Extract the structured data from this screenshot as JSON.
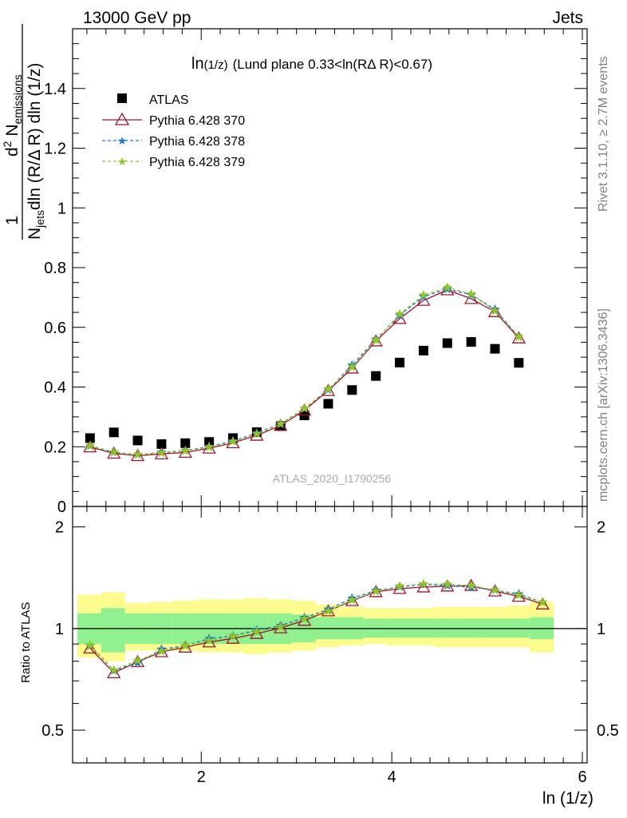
{
  "header": {
    "energy_label": "13000 GeV pp",
    "process_label": "Jets"
  },
  "side_labels": {
    "rivet": "Rivet 3.1.10, ≥ 2.7M events",
    "mcplots": "mcplots.cern.ch [arXiv:1306.3436]"
  },
  "chart_data": [
    {
      "type": "scatter",
      "title_main": "ln",
      "title_sub": "(1/z)",
      "title_rest": "(Lund plane 0.33<ln(RΔ R)<0.67)",
      "ylabel": "1/N_jets dln (R/Δ R) dln (1/z) · d² N_emissions",
      "ylabel_parts": {
        "top": "d",
        "top_sup": "2",
        "top_rest": " N",
        "top_sub": "emissions",
        "one": "1",
        "bottom_n": "N",
        "bottom_sub": "jets",
        "bottom_rest": "dln (R/Δ R) dln (1/z)"
      },
      "watermark": "ATLAS_2020_I1790256",
      "xlim": [
        0.65,
        6.05
      ],
      "ylim": [
        0,
        1.6
      ],
      "yticks": [
        "0",
        "0.2",
        "0.4",
        "0.6",
        "0.8",
        "1",
        "1.2",
        "1.4"
      ],
      "legend_position": "top-left",
      "x": [
        0.833,
        1.083,
        1.333,
        1.583,
        1.833,
        2.083,
        2.333,
        2.583,
        2.833,
        3.083,
        3.333,
        3.583,
        3.833,
        4.083,
        4.333,
        4.583,
        4.833,
        5.083,
        5.333,
        5.583
      ],
      "series": [
        {
          "name": "ATLAS",
          "marker": "square",
          "color": "#000000",
          "values": [
            0.229,
            0.248,
            0.221,
            0.209,
            0.212,
            0.216,
            0.229,
            0.249,
            0.269,
            0.305,
            0.344,
            0.39,
            0.437,
            0.482,
            0.522,
            0.547,
            0.551,
            0.528,
            0.481,
            null
          ]
        },
        {
          "name": "Pythia 6.428 370",
          "marker": "triangle-open",
          "color": "#a0152c",
          "values": [
            0.199,
            0.178,
            0.17,
            0.176,
            0.181,
            0.195,
            0.213,
            0.238,
            0.271,
            0.322,
            0.388,
            0.463,
            0.554,
            0.629,
            0.69,
            0.725,
            0.696,
            0.652,
            0.564,
            null
          ]
        },
        {
          "name": "Pythia 6.428 378",
          "marker": "star",
          "color": "#1a78d4",
          "values": [
            0.203,
            0.181,
            0.174,
            0.181,
            0.187,
            0.201,
            0.219,
            0.246,
            0.277,
            0.328,
            0.391,
            0.473,
            0.56,
            0.64,
            0.703,
            0.728,
            0.709,
            0.66,
            0.568,
            null
          ]
        },
        {
          "name": "Pythia 6.428 379",
          "marker": "star",
          "color": "#8ec624",
          "values": [
            0.204,
            0.182,
            0.174,
            0.179,
            0.186,
            0.199,
            0.217,
            0.243,
            0.276,
            0.328,
            0.393,
            0.467,
            0.557,
            0.645,
            0.708,
            0.733,
            0.712,
            0.655,
            0.568,
            null
          ]
        }
      ]
    },
    {
      "type": "scatter",
      "ylabel": "Ratio to ATLAS",
      "xlabel": "ln (1/z)",
      "scale": "log",
      "ylim": [
        0.4,
        2.3
      ],
      "yticks": [
        "0.5",
        "1",
        "2"
      ],
      "xticks": [
        "2",
        "4",
        "6"
      ],
      "reference_line": 1,
      "band_edges": [
        0.7,
        0.95,
        1.2,
        1.45,
        1.7,
        1.95,
        2.2,
        2.45,
        2.7,
        2.95,
        3.2,
        3.45,
        3.7,
        3.95,
        4.2,
        4.45,
        4.7,
        4.95,
        5.2,
        5.45,
        5.7
      ],
      "band_stat_low": [
        0.9,
        0.85,
        0.9,
        0.9,
        0.9,
        0.9,
        0.9,
        0.9,
        0.9,
        0.91,
        0.93,
        0.93,
        0.94,
        0.94,
        0.94,
        0.94,
        0.94,
        0.94,
        0.94,
        0.93
      ],
      "band_stat_high": [
        1.11,
        1.15,
        1.11,
        1.11,
        1.11,
        1.11,
        1.11,
        1.11,
        1.11,
        1.1,
        1.08,
        1.08,
        1.07,
        1.07,
        1.07,
        1.07,
        1.07,
        1.07,
        1.07,
        1.08
      ],
      "band_sys_low": [
        0.82,
        0.8,
        0.86,
        0.86,
        0.86,
        0.85,
        0.85,
        0.84,
        0.85,
        0.86,
        0.88,
        0.89,
        0.9,
        0.89,
        0.89,
        0.88,
        0.88,
        0.88,
        0.88,
        0.85
      ],
      "band_sys_high": [
        1.26,
        1.28,
        1.19,
        1.2,
        1.21,
        1.22,
        1.22,
        1.23,
        1.22,
        1.21,
        1.18,
        1.16,
        1.15,
        1.15,
        1.15,
        1.16,
        1.16,
        1.16,
        1.17,
        1.2
      ],
      "band_stat_color": "#90f090",
      "band_sys_color": "#fbfb8e",
      "x": [
        0.833,
        1.083,
        1.333,
        1.583,
        1.833,
        2.083,
        2.333,
        2.583,
        2.833,
        3.083,
        3.333,
        3.583,
        3.833,
        4.083,
        4.333,
        4.583,
        4.833,
        5.083,
        5.333,
        5.583
      ],
      "series": [
        {
          "name": "Pythia 6.428 370",
          "marker": "triangle-open",
          "color": "#a0152c",
          "values": [
            0.875,
            0.739,
            0.797,
            0.853,
            0.88,
            0.912,
            0.935,
            0.966,
            1.004,
            1.057,
            1.127,
            1.209,
            1.285,
            1.313,
            1.327,
            1.335,
            1.34,
            1.291,
            1.245,
            1.181
          ]
        },
        {
          "name": "Pythia 6.428 378",
          "marker": "star",
          "color": "#1a78d4",
          "values": [
            0.89,
            0.751,
            0.792,
            0.868,
            0.89,
            0.934,
            0.952,
            0.99,
            1.02,
            1.078,
            1.14,
            1.229,
            1.297,
            1.329,
            1.352,
            1.341,
            1.325,
            1.3,
            1.266,
            1.196
          ]
        },
        {
          "name": "Pythia 6.428 379",
          "marker": "star",
          "color": "#8ec624",
          "values": [
            0.893,
            0.753,
            0.804,
            0.856,
            0.89,
            0.922,
            0.95,
            0.981,
            1.012,
            1.068,
            1.127,
            1.214,
            1.289,
            1.335,
            1.356,
            1.353,
            1.34,
            1.3,
            1.256,
            1.196
          ]
        }
      ]
    }
  ]
}
